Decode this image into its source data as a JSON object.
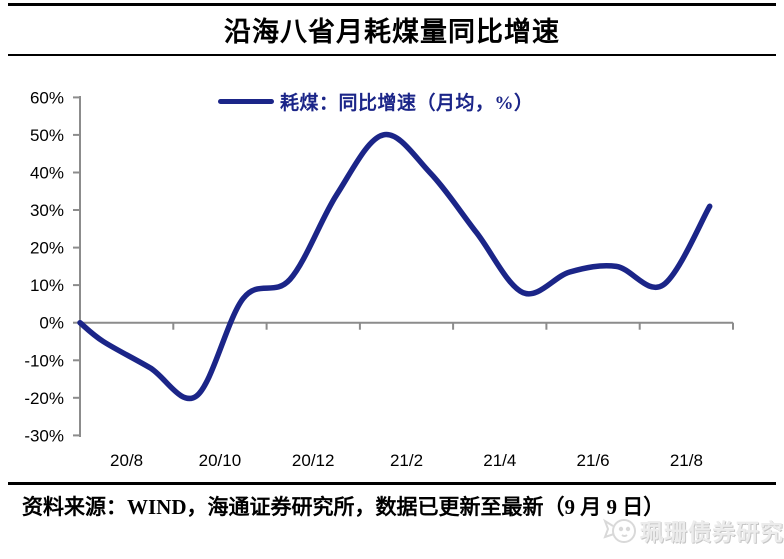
{
  "title": "沿海八省月耗煤量同比增速",
  "legend": {
    "label": "耗煤：同比增速（月均，%）"
  },
  "source_note": "资料来源：WIND，海通证券研究所，数据已更新至最新（9 月 9 日）",
  "watermark": {
    "label": "珮珊债券研究",
    "logo": "fish-face-logo"
  },
  "colors": {
    "line": "#1B2588",
    "legend_text": "#1B2588",
    "axis": "#8C8C8C",
    "text": "#000000",
    "rule": "#000000",
    "watermark": "#ECECEC"
  },
  "chart_data": {
    "type": "line",
    "smooth": true,
    "title": "沿海八省月耗煤量同比增速",
    "xlabel": "",
    "ylabel": "",
    "ylim": [
      -30,
      60
    ],
    "grid": false,
    "legend_position": "top-center",
    "y_tick_labels": [
      "60%",
      "50%",
      "40%",
      "30%",
      "20%",
      "10%",
      "0%",
      "-10%",
      "-20%",
      "-30%"
    ],
    "y_tick_values": [
      60,
      50,
      40,
      30,
      20,
      10,
      0,
      -10,
      -20,
      -30
    ],
    "x_tick_labels": [
      "20/8",
      "20/10",
      "20/12",
      "21/2",
      "21/4",
      "21/6",
      "21/8"
    ],
    "series": [
      {
        "name": "耗煤：同比增速（月均，%）",
        "x": [
          "20/7",
          "20/8",
          "20/9",
          "20/10",
          "20/11",
          "20/12",
          "21/1",
          "21/2",
          "21/3",
          "21/4",
          "21/5",
          "21/6",
          "21/7",
          "21/8",
          "21/9"
        ],
        "values": [
          0,
          -5,
          -12,
          -19.5,
          6.5,
          11.5,
          34,
          50,
          40,
          24,
          8,
          13.5,
          15,
          10,
          31
        ]
      }
    ]
  }
}
